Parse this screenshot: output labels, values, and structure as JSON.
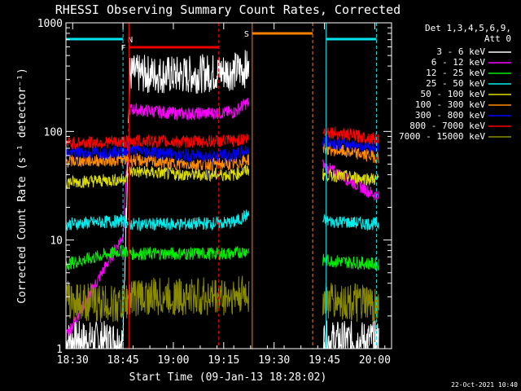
{
  "colors": {
    "background": "#000000",
    "axes": "#ffffff",
    "flag_n": "#00e5ee",
    "flag_f": "#ee0000",
    "flag_s": "#ff7f00"
  },
  "timestamp": "22-Oct-2021 10:40",
  "chart_data": {
    "type": "line",
    "title": "RHESSI Observing Summary Count Rates, Corrected",
    "xlabel": "Start Time (09-Jan-13 18:28:02)",
    "ylabel": "Corrected Count Rate (s⁻¹ detector⁻¹)",
    "yscale": "log",
    "ylim": [
      1,
      1000
    ],
    "xlim_minutes_after_1828": [
      0,
      97
    ],
    "x_tick_labels": [
      "18:30",
      "18:45",
      "19:00",
      "19:15",
      "19:30",
      "19:45",
      "20:00"
    ],
    "x_ticks_minutes": [
      2,
      17,
      32,
      47,
      62,
      77,
      92
    ],
    "y_tick_labels": [
      "1",
      "10",
      "100",
      "1000"
    ],
    "y_ticks": [
      1,
      10,
      100,
      1000
    ],
    "legend_header": [
      "Det 1,3,4,5,6,9,",
      "Att 0"
    ],
    "legend_position": "right",
    "segments_minutes": [
      [
        0,
        18.5
      ],
      [
        18.6,
        54.5
      ],
      [
        76.5,
        93.2
      ]
    ],
    "series": [
      {
        "name": "3 - 6 keV",
        "color": "#ffffff",
        "values": [
          1.2,
          1.2,
          340,
          330,
          360,
          380,
          1.2,
          1.2
        ]
      },
      {
        "name": "6 - 12 keV",
        "color": "#ff00ff",
        "values": [
          1.3,
          11,
          160,
          145,
          150,
          185,
          48,
          25
        ]
      },
      {
        "name": "12 - 25 keV",
        "color": "#00ee00",
        "values": [
          6,
          8,
          7.5,
          7.5,
          7.5,
          8,
          6.5,
          6
        ]
      },
      {
        "name": "25 - 50 keV",
        "color": "#00eeee",
        "values": [
          14,
          15,
          14,
          14,
          14.5,
          17,
          15,
          14
        ]
      },
      {
        "name": "50 - 100 keV",
        "color": "#dddd00",
        "values": [
          34,
          36,
          43,
          40,
          40,
          44,
          40,
          36
        ]
      },
      {
        "name": "100 - 300 keV",
        "color": "#ff8c00",
        "values": [
          53,
          55,
          55,
          50,
          50,
          55,
          70,
          58
        ]
      },
      {
        "name": "300 - 800 keV",
        "color": "#0000ff",
        "values": [
          63,
          65,
          68,
          60,
          60,
          68,
          80,
          72
        ]
      },
      {
        "name": "800 - 7000 keV",
        "color": "#ff0000",
        "values": [
          78,
          80,
          82,
          80,
          82,
          86,
          100,
          85
        ]
      },
      {
        "name": "7000 - 15000 keV",
        "color": "#8b8b00",
        "values": [
          2.8,
          2.5,
          3,
          3,
          3,
          3.2,
          2.8,
          2.5
        ]
      }
    ],
    "flags": [
      {
        "label": "N",
        "color": "#00e5ee",
        "ranges_minutes": [
          [
            0,
            17
          ],
          [
            77.5,
            92.5
          ]
        ]
      },
      {
        "label": "F",
        "color": "#ee0000",
        "ranges_minutes": [
          [
            18.8,
            45.5
          ]
        ]
      },
      {
        "label": "S",
        "color": "#ff7f00",
        "ranges_minutes": [
          [
            55.5,
            73.5
          ]
        ]
      }
    ]
  }
}
